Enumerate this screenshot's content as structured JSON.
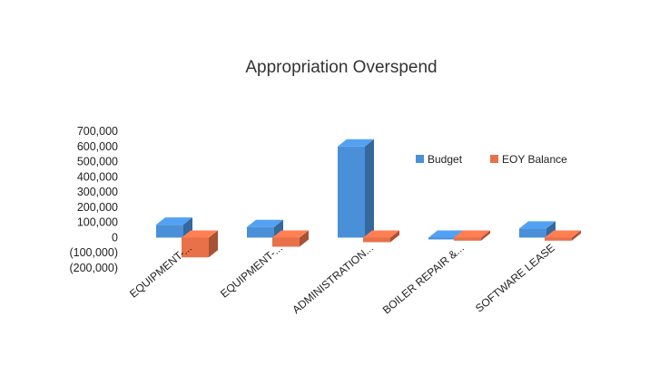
{
  "chart_data": {
    "type": "bar",
    "title": "Appropriation Overspend",
    "categories": [
      "EQUIPMENT-...",
      "EQUIPMENT-...",
      "ADMINISTRATION...",
      "BOILER REPAIR &...",
      "SOFTWARE LEASE"
    ],
    "series": [
      {
        "name": "Budget",
        "color": "#4a90d9",
        "values": [
          85000,
          70000,
          600000,
          0,
          60000
        ]
      },
      {
        "name": "EOY Balance",
        "color": "#e8714a",
        "values": [
          -130000,
          -60000,
          -30000,
          -20000,
          -20000
        ]
      }
    ],
    "ylim": [
      -200000,
      700000
    ],
    "yticks": [
      700000,
      600000,
      500000,
      400000,
      300000,
      200000,
      100000,
      0,
      -100000,
      -200000
    ],
    "ytick_labels": [
      "700,000",
      "600,000",
      "500,000",
      "400,000",
      "300,000",
      "200,000",
      "100,000",
      "0",
      "(100,000)",
      "(200,000)"
    ],
    "legend_position": "right",
    "grid": false,
    "style": "3d-column"
  }
}
